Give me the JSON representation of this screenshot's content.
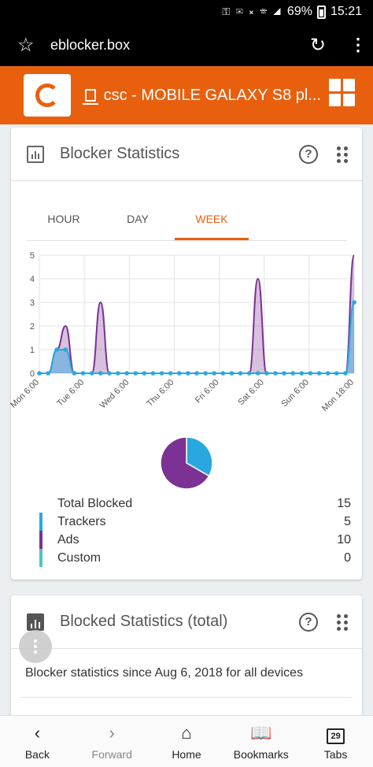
{
  "status_bar": {
    "battery": "69%",
    "time": "15:21"
  },
  "browser": {
    "url": "eblocker.box"
  },
  "app_header": {
    "device_name": "csc - MOBILE GALAXY S8 pl..."
  },
  "card1": {
    "title": "Blocker Statistics",
    "help_label": "?",
    "tabs": [
      {
        "label": "HOUR",
        "active": false
      },
      {
        "label": "DAY",
        "active": false
      },
      {
        "label": "WEEK",
        "active": true
      }
    ],
    "legend": [
      {
        "label": "Total Blocked",
        "value": "15",
        "color": ""
      },
      {
        "label": "Trackers",
        "value": "5",
        "color": "#29a8e0"
      },
      {
        "label": "Ads",
        "value": "10",
        "color": "#7b3294"
      },
      {
        "label": "Custom",
        "value": "0",
        "color": "#4fc3c7"
      }
    ]
  },
  "card2": {
    "title": "Blocked Statistics (total)",
    "help_label": "?",
    "description": "Blocker statistics since Aug 6, 2018 for all devices"
  },
  "bottom_nav": {
    "back": "Back",
    "forward": "Forward",
    "home": "Home",
    "bookmarks": "Bookmarks",
    "tabs": "Tabs",
    "tabs_count": "29"
  },
  "chart_data": {
    "type": "area",
    "x_tick_labels": [
      "Mon 6:00",
      "Tue 6:00",
      "Wed 6:00",
      "Thu 6:00",
      "Fri 6:00",
      "Sat 6:00",
      "Sun 6:00",
      "Mon 18:00"
    ],
    "ylim": [
      0,
      5
    ],
    "y_ticks": [
      0,
      1,
      2,
      3,
      4,
      5
    ],
    "grid": true,
    "colors": {
      "trackers": "#29a8e0",
      "ads": "#7b3294"
    },
    "series": [
      {
        "values": [
          0,
          0,
          1,
          1,
          0,
          0,
          0,
          0,
          0,
          0,
          0,
          0,
          0,
          0,
          0,
          0,
          0,
          0,
          0,
          0,
          0,
          0,
          0,
          0,
          0,
          0,
          0,
          0,
          0,
          0,
          0,
          0,
          0,
          0,
          0,
          0,
          3
        ]
      },
      {
        "values": [
          0,
          0,
          1,
          2,
          0,
          0,
          0,
          3,
          0,
          0,
          0,
          0,
          0,
          0,
          0,
          0,
          0,
          0,
          0,
          0,
          0,
          0,
          0,
          0,
          0,
          4,
          0,
          0,
          0,
          0,
          0,
          0,
          0,
          0,
          0,
          0,
          5
        ]
      }
    ],
    "pie": [
      {
        "value": 5,
        "color": "#29a8e0"
      },
      {
        "value": 10,
        "color": "#7b3294"
      }
    ]
  }
}
